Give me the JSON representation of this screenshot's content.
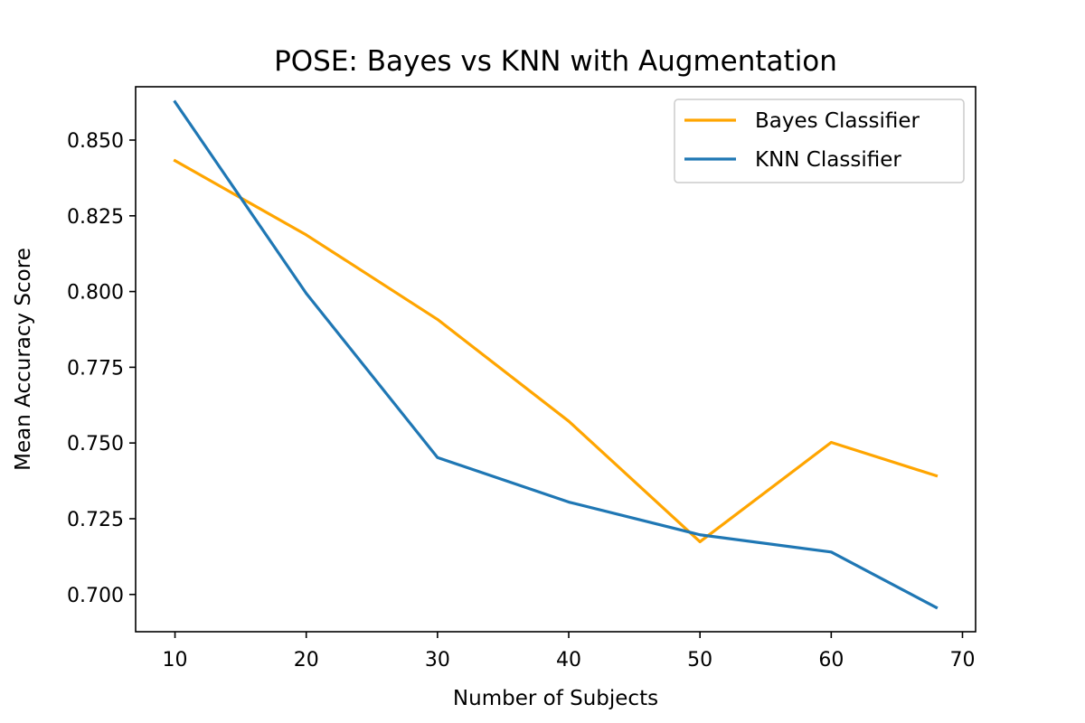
{
  "chart_data": {
    "type": "line",
    "title": "POSE: Bayes vs KNN with Augmentation",
    "xlabel": "Number of Subjects",
    "ylabel": "Mean Accuracy Score",
    "xlim": [
      7,
      71
    ],
    "ylim": [
      0.6877,
      0.8676
    ],
    "xticks": [
      10,
      20,
      30,
      40,
      50,
      60,
      70
    ],
    "xtick_labels": [
      "10",
      "20",
      "30",
      "40",
      "50",
      "60",
      "70"
    ],
    "yticks": [
      0.7,
      0.725,
      0.75,
      0.775,
      0.8,
      0.825,
      0.85
    ],
    "ytick_labels": [
      "0.700",
      "0.725",
      "0.750",
      "0.775",
      "0.800",
      "0.825",
      "0.850"
    ],
    "grid": false,
    "legend_position": "top-right",
    "x": [
      10,
      20,
      30,
      40,
      50,
      60,
      68
    ],
    "series": [
      {
        "name": "Bayes Classifier",
        "color": "#ffa500",
        "values": [
          0.8432,
          0.8187,
          0.7908,
          0.7572,
          0.7174,
          0.7502,
          0.7392
        ]
      },
      {
        "name": "KNN Classifier",
        "color": "#1f77b4",
        "values": [
          0.8626,
          0.7994,
          0.7452,
          0.7305,
          0.7197,
          0.714,
          0.6957
        ]
      }
    ]
  }
}
